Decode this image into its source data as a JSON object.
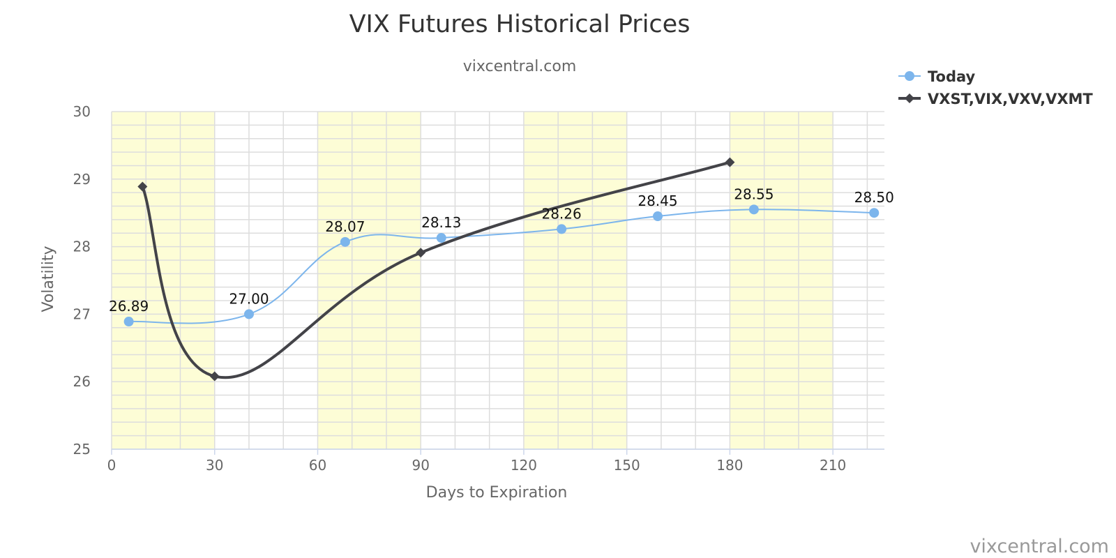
{
  "chart_data": {
    "type": "line",
    "title": "VIX Futures Historical Prices",
    "subtitle": "vixcentral.com",
    "xlabel": "Days to Expiration",
    "ylabel": "Volatility",
    "xlim": [
      0,
      225
    ],
    "ylim": [
      25,
      30
    ],
    "x_ticks": [
      0,
      30,
      60,
      90,
      120,
      150,
      180,
      210
    ],
    "y_ticks": [
      25,
      26,
      27,
      28,
      29,
      30
    ],
    "grid": true,
    "legend_position": "top-right",
    "shaded_bands": [
      [
        0,
        30
      ],
      [
        60,
        90
      ],
      [
        120,
        150
      ],
      [
        180,
        210
      ]
    ],
    "series": [
      {
        "name": "Today",
        "color": "#7cb5ec",
        "marker": "circle",
        "show_labels": true,
        "points": [
          {
            "x": 5,
            "y": 26.89,
            "label": "26.89"
          },
          {
            "x": 40,
            "y": 27.0,
            "label": "27.00"
          },
          {
            "x": 68,
            "y": 28.07,
            "label": "28.07"
          },
          {
            "x": 96,
            "y": 28.13,
            "label": "28.13"
          },
          {
            "x": 131,
            "y": 28.26,
            "label": "28.26"
          },
          {
            "x": 159,
            "y": 28.45,
            "label": "28.45"
          },
          {
            "x": 187,
            "y": 28.55,
            "label": "28.55"
          },
          {
            "x": 222,
            "y": 28.5,
            "label": "28.50"
          }
        ]
      },
      {
        "name": "VXST,VIX,VXV,VXMT",
        "color": "#434348",
        "marker": "diamond",
        "show_labels": false,
        "points": [
          {
            "x": 9,
            "y": 28.89
          },
          {
            "x": 30,
            "y": 26.08
          },
          {
            "x": 90,
            "y": 27.91
          },
          {
            "x": 180,
            "y": 29.25
          }
        ]
      }
    ]
  },
  "credits": "vixcentral.com"
}
